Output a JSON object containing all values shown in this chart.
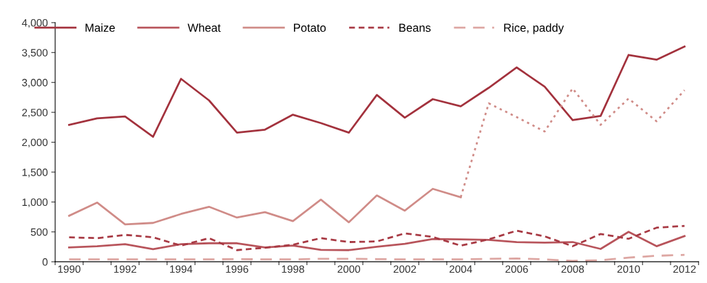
{
  "chart_data": {
    "type": "line",
    "categories": [
      "1990",
      null,
      "1992",
      null,
      "1994",
      null,
      "1996",
      null,
      "1998",
      null,
      "2000",
      null,
      "2002",
      null,
      "2004",
      null,
      "2006",
      null,
      "2008",
      null,
      "2010",
      null,
      "2012"
    ],
    "series": [
      {
        "name": "Maize",
        "color": "#a3323d",
        "line_style": "solid",
        "values": [
          2290,
          2400,
          2430,
          2090,
          3060,
          2700,
          2160,
          2210,
          2460,
          2320,
          2160,
          2790,
          2410,
          2720,
          2600,
          2910,
          3250,
          2930,
          2370,
          2440,
          3460,
          3380,
          3600
        ]
      },
      {
        "name": "Wheat",
        "color": "#b8545b",
        "line_style": "solid",
        "values": [
          240,
          260,
          295,
          210,
          295,
          310,
          310,
          240,
          270,
          200,
          195,
          250,
          300,
          380,
          375,
          365,
          330,
          320,
          330,
          215,
          500,
          260,
          430
        ]
      },
      {
        "name": "Potato",
        "color": "#d08c88",
        "line_style": "solid",
        "values": [
          770,
          990,
          625,
          650,
          800,
          920,
          740,
          830,
          680,
          1040,
          660,
          1110,
          855,
          1220,
          1080,
          null,
          null,
          null,
          null,
          null,
          null,
          null,
          null
        ]
      },
      {
        "color": "#d08c88",
        "line_style": "dotted",
        "values": [
          null,
          null,
          null,
          null,
          null,
          null,
          null,
          null,
          null,
          null,
          null,
          null,
          null,
          null,
          1080,
          2650,
          2420,
          2180,
          2900,
          2290,
          2730,
          2350,
          2870
        ]
      },
      {
        "name": "Beans",
        "color": "#a83a44",
        "line_style": "dashed",
        "values": [
          410,
          395,
          450,
          410,
          270,
          395,
          195,
          235,
          285,
          395,
          330,
          340,
          475,
          415,
          270,
          375,
          520,
          425,
          260,
          465,
          385,
          570,
          600
        ]
      },
      {
        "name": "Rice, paddy",
        "color": "#dda6a2",
        "line_style": "longdash",
        "values": [
          40,
          40,
          40,
          40,
          40,
          40,
          45,
          40,
          40,
          50,
          50,
          45,
          40,
          40,
          40,
          50,
          55,
          40,
          15,
          25,
          70,
          100,
          115
        ]
      }
    ],
    "ylim": [
      0,
      4000
    ],
    "yticks": [
      {
        "value": 0,
        "label": "0"
      },
      {
        "value": 500,
        "label": "500"
      },
      {
        "value": 1000,
        "label": "1,000"
      },
      {
        "value": 1500,
        "label": "1,500"
      },
      {
        "value": 2000,
        "label": "2,000"
      },
      {
        "value": 2500,
        "label": "2,500"
      },
      {
        "value": 3000,
        "label": "3,000"
      },
      {
        "value": 3500,
        "label": "3,500"
      },
      {
        "value": 4000,
        "label": "4,000"
      }
    ],
    "grid": false,
    "legend": "top"
  }
}
